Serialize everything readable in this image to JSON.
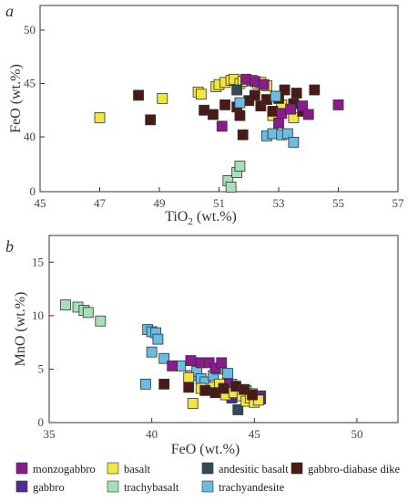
{
  "colors": {
    "monzogabbro": "#8b1a8f",
    "gabbro": "#4e2f8f",
    "basalt": "#f2e443",
    "trachybasalt": "#a7dfb9",
    "andesitic basalt": "#2f4c55",
    "trachyandesite": "#69bde3",
    "gabbro-diabase dike": "#4a1a14"
  },
  "legend": [
    {
      "key": "monzogabbro",
      "label": "monzogabbro"
    },
    {
      "key": "basalt",
      "label": "basalt"
    },
    {
      "key": "andesitic basalt",
      "label": "andesitic basalt"
    },
    {
      "key": "gabbro-diabase dike",
      "label": "gabbro-diabase dike"
    },
    {
      "key": "gabbro",
      "label": "gabbro"
    },
    {
      "key": "trachybasalt",
      "label": "trachybasalt"
    },
    {
      "key": "trachyandesite",
      "label": "trachyandesite"
    }
  ],
  "chart_data": [
    {
      "type": "scatter",
      "panel_label": "a",
      "xlabel_main": "TiO",
      "xlabel_sub": "2",
      "xlabel_rest": " (wt.%)",
      "ylabel": "FeO (wt.%)",
      "xticks": [
        "45",
        "47",
        "49",
        "51",
        "53",
        "55",
        "57"
      ],
      "yticks": [
        "0",
        "40",
        "45",
        "50"
      ],
      "series": [
        {
          "key": "basalt",
          "points": [
            [
              47.0,
              41.8
            ],
            [
              49.1,
              43.6
            ],
            [
              50.3,
              44.2
            ],
            [
              50.4,
              44.0
            ],
            [
              50.9,
              44.7
            ],
            [
              51.0,
              44.9
            ],
            [
              51.2,
              45.1
            ],
            [
              51.4,
              45.3
            ],
            [
              51.5,
              45.4
            ],
            [
              51.7,
              45.0
            ],
            [
              51.8,
              45.2
            ],
            [
              52.1,
              45.3
            ],
            [
              52.3,
              45.0
            ],
            [
              52.4,
              45.1
            ],
            [
              52.6,
              44.8
            ],
            [
              52.8,
              42.0
            ],
            [
              53.1,
              43.0
            ],
            [
              53.5,
              41.8
            ]
          ]
        },
        {
          "key": "gabbro-diabase dike",
          "points": [
            [
              48.3,
              43.9
            ],
            [
              48.7,
              41.6
            ],
            [
              50.5,
              42.5
            ],
            [
              50.8,
              42.1
            ],
            [
              51.2,
              43.0
            ],
            [
              51.6,
              42.8
            ],
            [
              51.7,
              42.0
            ],
            [
              51.8,
              40.2
            ],
            [
              52.0,
              43.4
            ],
            [
              52.2,
              43.9
            ],
            [
              52.4,
              42.9
            ],
            [
              52.6,
              43.5
            ],
            [
              52.8,
              42.4
            ],
            [
              53.0,
              43.6
            ],
            [
              53.2,
              44.4
            ],
            [
              53.5,
              43.1
            ],
            [
              53.8,
              42.4
            ],
            [
              54.2,
              44.4
            ],
            [
              53.6,
              44.1
            ]
          ]
        },
        {
          "key": "monzogabbro",
          "points": [
            [
              51.1,
              41.0
            ],
            [
              51.9,
              45.4
            ],
            [
              52.2,
              45.2
            ],
            [
              52.5,
              44.9
            ],
            [
              53.0,
              41.3
            ],
            [
              53.1,
              42.2
            ],
            [
              53.4,
              42.6
            ],
            [
              53.8,
              42.9
            ],
            [
              54.0,
              42.1
            ],
            [
              55.0,
              43.0
            ]
          ]
        },
        {
          "key": "gabbro",
          "points": [
            [
              52.9,
              43.8
            ]
          ]
        },
        {
          "key": "andesitic basalt",
          "points": [
            [
              51.6,
              44.4
            ]
          ]
        },
        {
          "key": "trachyandesite",
          "points": [
            [
              51.7,
              43.2
            ],
            [
              52.6,
              40.1
            ],
            [
              52.8,
              40.3
            ],
            [
              52.9,
              43.8
            ],
            [
              53.1,
              40.2
            ],
            [
              53.3,
              40.3
            ],
            [
              53.5,
              39.5
            ]
          ]
        },
        {
          "key": "trachybasalt",
          "points": [
            [
              51.3,
              1.2
            ],
            [
              51.4,
              0.5
            ],
            [
              51.6,
              2.1
            ],
            [
              51.7,
              2.8
            ]
          ]
        }
      ]
    },
    {
      "type": "scatter",
      "panel_label": "b",
      "xlabel": "FeO (wt.%)",
      "ylabel": "MnO (wt.%)",
      "xticks": [
        "35",
        "40",
        "45",
        "50"
      ],
      "yticks": [
        "0",
        "5",
        "10",
        "15"
      ],
      "series": [
        {
          "key": "trachybasalt",
          "points": [
            [
              35.8,
              11.0
            ],
            [
              36.4,
              10.8
            ],
            [
              36.7,
              10.5
            ],
            [
              36.9,
              10.3
            ],
            [
              37.5,
              9.5
            ]
          ]
        },
        {
          "key": "trachyandesite",
          "points": [
            [
              39.7,
              3.6
            ],
            [
              39.8,
              8.7
            ],
            [
              40.0,
              8.5
            ],
            [
              40.2,
              8.4
            ],
            [
              40.3,
              7.8
            ],
            [
              40.0,
              6.6
            ],
            [
              40.6,
              6.0
            ],
            [
              41.4,
              5.3
            ],
            [
              41.9,
              4.4
            ],
            [
              42.2,
              4.8
            ],
            [
              42.4,
              4.1
            ],
            [
              42.6,
              3.8
            ],
            [
              43.0,
              4.4
            ],
            [
              43.2,
              5.0
            ],
            [
              43.7,
              4.6
            ],
            [
              43.9,
              3.6
            ],
            [
              44.6,
              3.0
            ]
          ]
        },
        {
          "key": "monzogabbro",
          "points": [
            [
              41.0,
              5.3
            ],
            [
              41.9,
              5.8
            ],
            [
              42.4,
              5.6
            ],
            [
              42.8,
              5.6
            ],
            [
              43.1,
              5.1
            ],
            [
              43.4,
              5.6
            ],
            [
              43.7,
              3.6
            ],
            [
              45.3,
              2.5
            ]
          ]
        },
        {
          "key": "gabbro",
          "points": [
            [
              43.9,
              2.3
            ],
            [
              45.3,
              2.2
            ]
          ]
        },
        {
          "key": "andesitic basalt",
          "points": [
            [
              44.2,
              1.2
            ]
          ]
        },
        {
          "key": "basalt",
          "points": [
            [
              41.8,
              4.2
            ],
            [
              42.0,
              1.8
            ],
            [
              42.4,
              3.2
            ],
            [
              43.0,
              3.3
            ],
            [
              43.3,
              3.6
            ],
            [
              43.6,
              2.6
            ],
            [
              44.0,
              2.8
            ],
            [
              44.4,
              2.5
            ],
            [
              44.6,
              2.0
            ],
            [
              44.8,
              2.3
            ],
            [
              45.0,
              1.9
            ],
            [
              45.2,
              2.1
            ],
            [
              44.9,
              2.7
            ]
          ]
        },
        {
          "key": "gabbro-diabase dike",
          "points": [
            [
              40.6,
              3.6
            ],
            [
              41.8,
              3.3
            ],
            [
              42.6,
              3.0
            ],
            [
              43.1,
              2.8
            ],
            [
              43.5,
              3.2
            ],
            [
              44.1,
              3.4
            ],
            [
              44.5,
              3.1
            ],
            [
              44.9,
              2.6
            ]
          ]
        }
      ]
    }
  ]
}
